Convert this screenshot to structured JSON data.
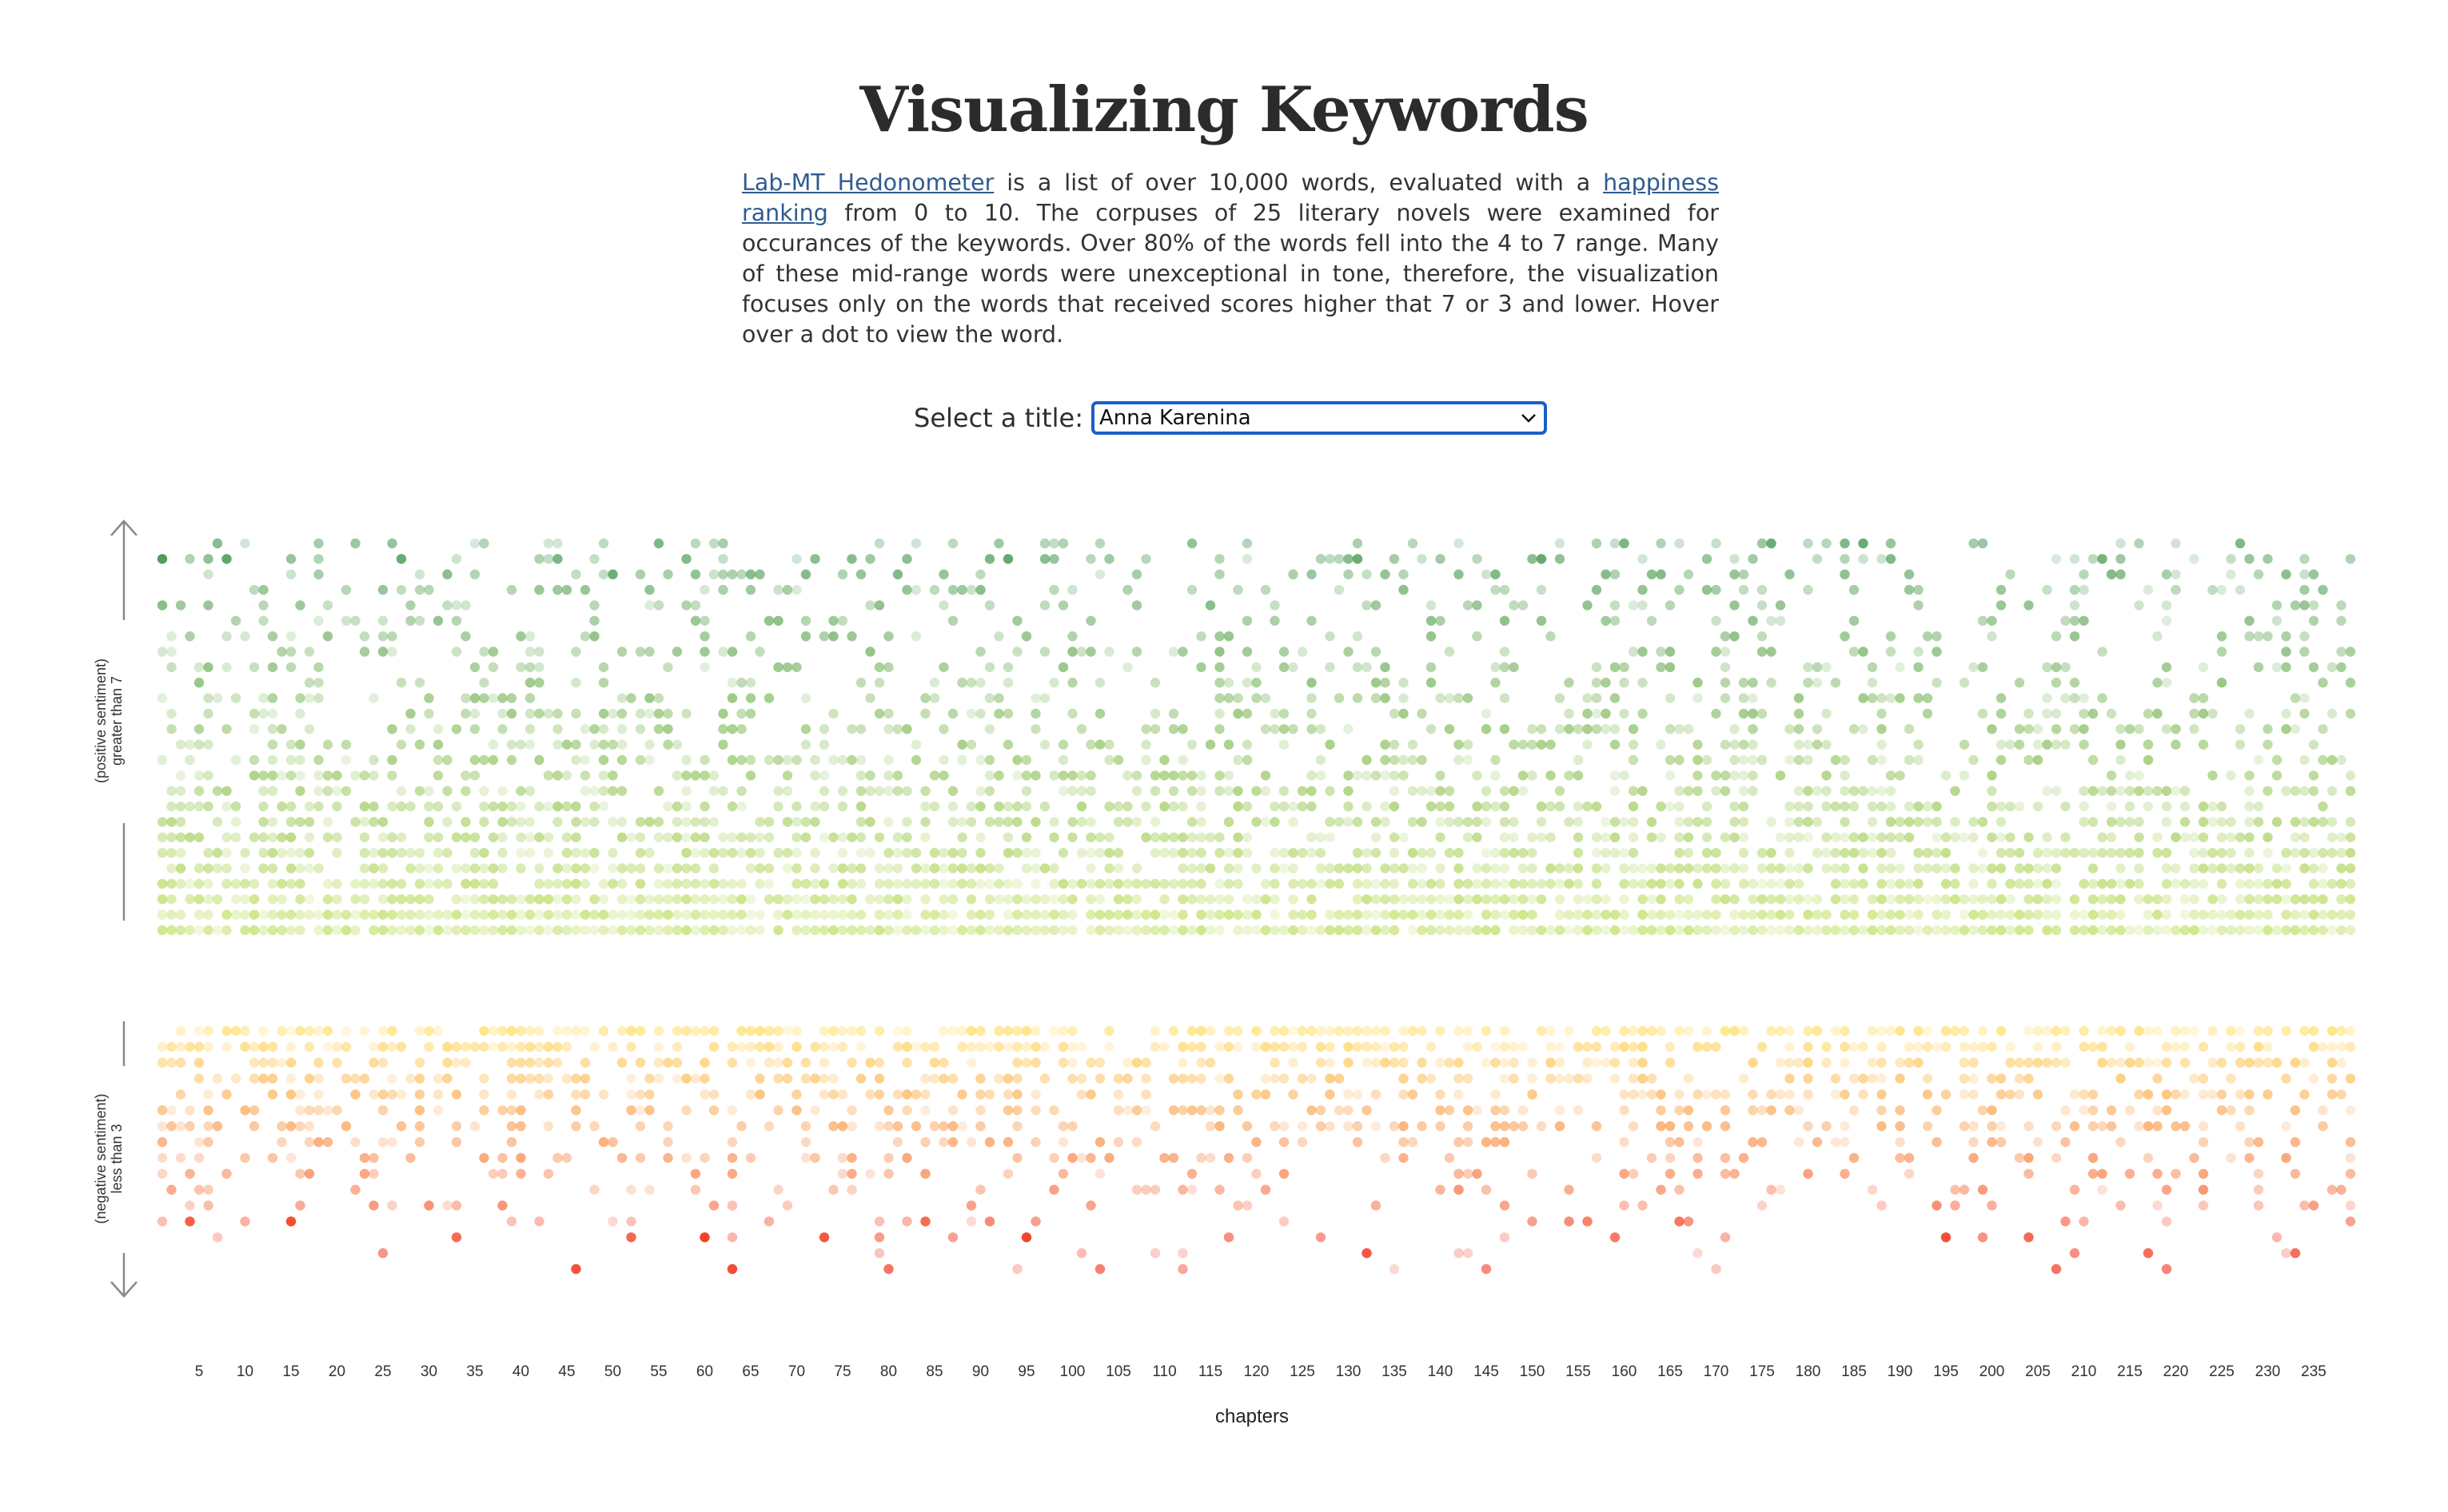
{
  "title": "Visualizing Keywords",
  "intro": {
    "link1": "Lab-MT Hedonometer",
    "text1": " is a list of over 10,000 words, evaluated with a ",
    "link2": "happiness ranking",
    "text2": " from 0 to 10. The corpuses of 25 literary novels were examined for occurances of the keywords. Over 80% of the words fell into the 4 to 7 range. Many of these mid-range words were unexceptional in tone, therefore, the visualization focuses only on the words that received scores higher that 7 or 3 and lower. Hover over a dot to view the word."
  },
  "selector": {
    "label": "Select a title:",
    "value": "Anna Karenina"
  },
  "colors": {
    "positive_dark": "#2e8b3e",
    "positive_light": "#b5d94a",
    "negative_light": "#ffd84a",
    "negative_dark": "#f2301a",
    "select_border": "#1a5fc9",
    "link": "#2f5b92"
  },
  "icons": {
    "up_arrow": "arrow-up-icon",
    "down_arrow": "arrow-down-icon",
    "select_caret": "chevron-down-icon"
  },
  "chart_data": {
    "type": "scatter",
    "xlabel": "chapters",
    "x_ticks": [
      5,
      10,
      15,
      20,
      25,
      30,
      35,
      40,
      45,
      50,
      55,
      60,
      65,
      70,
      75,
      80,
      85,
      90,
      95,
      100,
      105,
      110,
      115,
      120,
      125,
      130,
      135,
      140,
      145,
      150,
      155,
      160,
      165,
      170,
      175,
      180,
      185,
      190,
      195,
      200,
      205,
      210,
      215,
      220,
      225,
      230,
      235
    ],
    "xlim": [
      1,
      239
    ],
    "positive_panel": {
      "label_line1": "(positive sentiment)",
      "label_line2": "greater than 7",
      "threshold": 7
    },
    "negative_panel": {
      "label_line1": "(negative sentiment)",
      "label_line2": "less than 3",
      "threshold": 3
    },
    "grid": false,
    "legend": "none"
  }
}
